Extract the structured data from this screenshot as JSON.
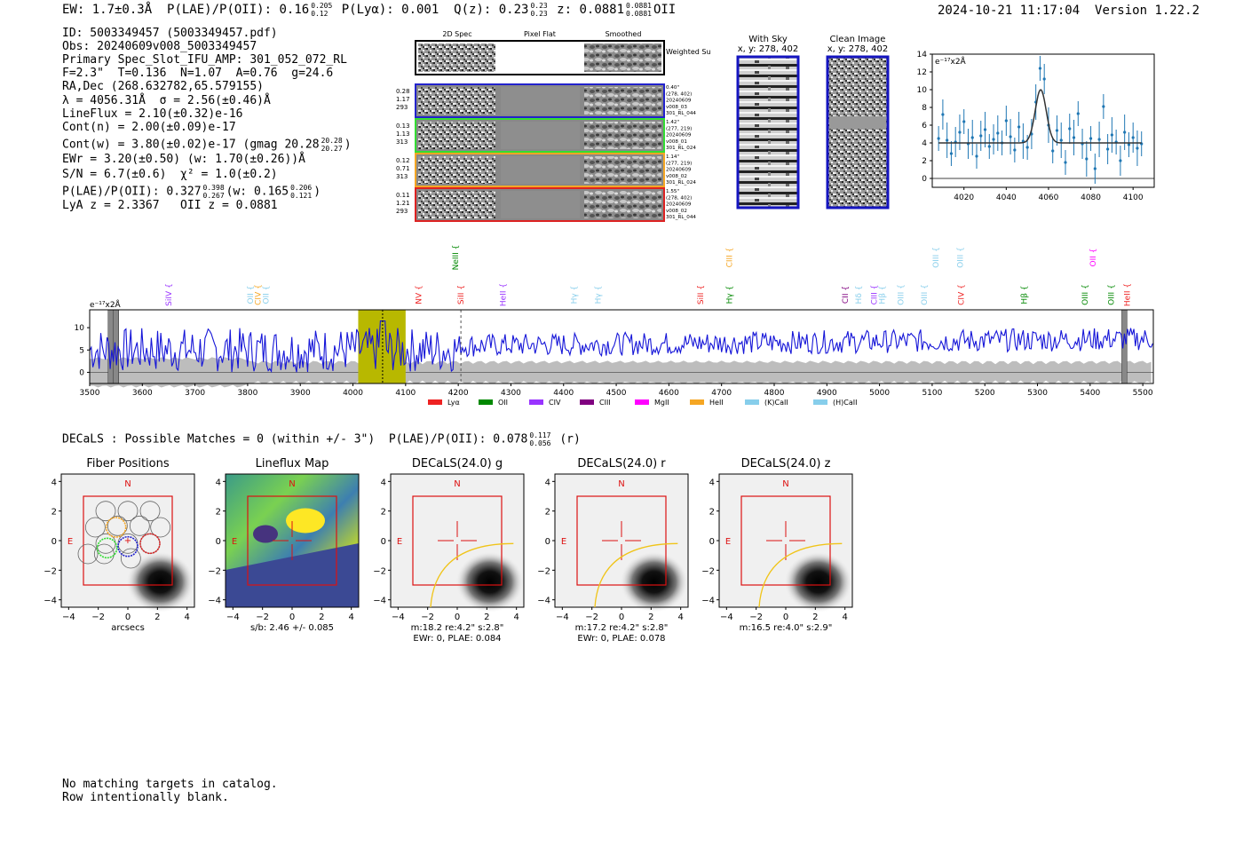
{
  "header": {
    "ew": "EW: 1.7±0.3Å",
    "plae_label": "P(LAE)/P(OII):",
    "plae_value": "0.16",
    "plae_hi": "0.205",
    "plae_lo": "0.12",
    "plya": "P(Lyα): 0.001",
    "qz_label": "Q(z):",
    "qz_value": "0.23",
    "qz_hi": "0.23",
    "qz_lo": "0.23",
    "z_label": "z:",
    "z_value": "0.0881",
    "z_hi": "0.0881",
    "z_lo": "0.0881",
    "z_line": "OII",
    "timestamp": "2024-10-21 11:17:04",
    "version": "Version 1.22.2"
  },
  "info": {
    "id": "ID: 5003349457 (5003349457.pdf)",
    "obs": "Obs: 20240609v008_5003349457",
    "primary": "Primary Spec_Slot_IFU_AMP: 301_052_072_RL",
    "params": "F=2.3\"  T=0.136  N=1.07  A=0.76  g=24.6",
    "radec": "RA,Dec (268.632782,65.579155)",
    "lambda": "λ = 4056.31Å  σ = 2.56(±0.46)Å",
    "lineflux": "LineFlux = 2.10(±0.32)e-16",
    "contn": "Cont(n) = 2.00(±0.09)e-17",
    "contw": "Cont(w) = 3.80(±0.02)e-17 (gmag 20.28",
    "contw_hi": "20.28",
    "contw_lo": "20.27",
    "ewr": "EWr = 3.20(±0.50) (w: 1.70(±0.26))Å",
    "sn": "S/N = 6.7(±0.6)  χ² = 1.0(±0.2)",
    "plae": "P(LAE)/P(OII): 0.327",
    "plae_hi": "0.398",
    "plae_lo": "0.267",
    "plae_w": "(w: 0.165",
    "plae_w_hi": "0.206",
    "plae_w_lo": "0.121",
    "lya_z": "LyA z = 2.3367   OII z = 0.0881"
  },
  "cutouts": {
    "col_2d": "2D Spec",
    "col_flat": "Pixel Flat",
    "col_smooth": "Smoothed",
    "weighted": "Weighted Sum",
    "rows": [
      {
        "color": "#2222cc",
        "left": [
          "0.28",
          "1.17",
          "293"
        ],
        "right": [
          "0.40\"",
          "(278, 402)",
          "20240609",
          "v008_03",
          "301_RL_044"
        ]
      },
      {
        "color": "#33dd33",
        "left": [
          "0.13",
          "1.13",
          "313"
        ],
        "right": [
          "1.42\"",
          "(277, 219)",
          "20240609",
          "v008_01",
          "301_RL_024"
        ]
      },
      {
        "color": "#f5a623",
        "left": [
          "0.12",
          "0.71",
          "313"
        ],
        "right": [
          "1.14\"",
          "(277, 219)",
          "20240609",
          "v008_02",
          "301_RL_024"
        ]
      },
      {
        "color": "#dd2222",
        "left": [
          "0.11",
          "1.21",
          "293"
        ],
        "right": [
          "1.55\"",
          "(278, 402)",
          "20240609",
          "v008_02",
          "301_RL_044"
        ]
      }
    ]
  },
  "sky": {
    "with_sky": "With Sky",
    "clean": "Clean Image",
    "coords": "x, y: 278, 402"
  },
  "zoom_chart": {
    "type": "line",
    "ylabel": "e⁻¹⁷x2Å",
    "xlim": [
      4005,
      4110
    ],
    "ylim": [
      -1,
      14
    ],
    "xticks": [
      4020,
      4040,
      4060,
      4080,
      4100
    ],
    "yticks": [
      0,
      2,
      4,
      6,
      8,
      10,
      12,
      14
    ],
    "continuum": 4.0,
    "peak_center": 4056.3,
    "peak_amp": 6.0,
    "peak_sigma": 2.6,
    "x": [
      4008,
      4010,
      4012,
      4014,
      4016,
      4018,
      4020,
      4022,
      4024,
      4026,
      4028,
      4030,
      4032,
      4034,
      4036,
      4038,
      4040,
      4042,
      4044,
      4046,
      4048,
      4050,
      4052,
      4054,
      4056,
      4058,
      4060,
      4062,
      4064,
      4066,
      4068,
      4070,
      4072,
      4074,
      4076,
      4078,
      4080,
      4082,
      4084,
      4086,
      4088,
      4090,
      4092,
      4094,
      4096,
      4098,
      4100,
      4102,
      4104
    ],
    "y": [
      4.5,
      7.2,
      4.3,
      2.8,
      4.1,
      5.2,
      6.4,
      3.9,
      4.6,
      2.5,
      4.8,
      5.5,
      3.6,
      4.4,
      5.1,
      4.0,
      6.5,
      4.7,
      3.2,
      5.8,
      4.2,
      3.5,
      5.0,
      8.6,
      12.4,
      11.2,
      6.0,
      3.1,
      5.4,
      4.3,
      1.8,
      5.6,
      4.6,
      7.3,
      3.9,
      2.2,
      4.5,
      1.1,
      4.4,
      8.1,
      3.3,
      4.9,
      4.1,
      2.0,
      5.2,
      3.8,
      4.6,
      3.4,
      3.9
    ]
  },
  "spectrum": {
    "type": "line",
    "ylabel": "e⁻¹⁷x2Å",
    "xlim": [
      3500,
      5520
    ],
    "ylim": [
      -2.5,
      14
    ],
    "xticks": [
      3500,
      3600,
      3700,
      3800,
      3900,
      4000,
      4100,
      4200,
      4300,
      4400,
      4500,
      4600,
      4700,
      4800,
      4900,
      5000,
      5100,
      5200,
      5300,
      5400,
      5500
    ],
    "yticks": [
      0,
      5,
      10
    ],
    "highlight": [
      4010,
      4100
    ],
    "line_marker": 4056.3,
    "dashed_marker": 4205,
    "bad_regions": [
      [
        3535,
        3555
      ],
      [
        3545,
        3555
      ],
      [
        5460,
        5470
      ]
    ],
    "lines": [
      {
        "label": "SiIV",
        "x": 3655,
        "color": "#9933ff",
        "level": 1
      },
      {
        "label": "OII",
        "x": 3810,
        "color": "#87ceeb",
        "level": 1
      },
      {
        "label": "CIV",
        "x": 3825,
        "color": "#f5a623",
        "level": 1
      },
      {
        "label": "OII",
        "x": 3840,
        "color": "#87ceeb",
        "level": 1
      },
      {
        "label": "NV",
        "x": 4130,
        "color": "#ee2222",
        "level": 1
      },
      {
        "label": "NeIII",
        "x": 4200,
        "color": "#008800",
        "level": 2
      },
      {
        "label": "SiII",
        "x": 4210,
        "color": "#ee2222",
        "level": 1
      },
      {
        "label": "HeII",
        "x": 4290,
        "color": "#9933ff",
        "level": 1
      },
      {
        "label": "Hγ",
        "x": 4425,
        "color": "#87ceeb",
        "level": 1
      },
      {
        "label": "Hγ",
        "x": 4470,
        "color": "#87ceeb",
        "level": 1
      },
      {
        "label": "SiII",
        "x": 4665,
        "color": "#ee2222",
        "level": 1
      },
      {
        "label": "CIII",
        "x": 4720,
        "color": "#f5a623",
        "level": 2
      },
      {
        "label": "Hγ",
        "x": 4720,
        "color": "#008800",
        "level": 1
      },
      {
        "label": "CII",
        "x": 4940,
        "color": "#800080",
        "level": 1
      },
      {
        "label": "Hδ",
        "x": 4965,
        "color": "#87ceeb",
        "level": 1
      },
      {
        "label": "CIII",
        "x": 4995,
        "color": "#9933ff",
        "level": 1
      },
      {
        "label": "Hβ",
        "x": 5010,
        "color": "#87ceeb",
        "level": 1
      },
      {
        "label": "OIII",
        "x": 5045,
        "color": "#87ceeb",
        "level": 1
      },
      {
        "label": "OIII",
        "x": 5090,
        "color": "#87ceeb",
        "level": 1
      },
      {
        "label": "OIII",
        "x": 5112,
        "color": "#87ceeb",
        "level": 2
      },
      {
        "label": "OIII",
        "x": 5158,
        "color": "#87ceeb",
        "level": 2
      },
      {
        "label": "CIV",
        "x": 5160,
        "color": "#ee2222",
        "level": 1
      },
      {
        "label": "Hβ",
        "x": 5280,
        "color": "#008800",
        "level": 1
      },
      {
        "label": "OIII",
        "x": 5395,
        "color": "#008800",
        "level": 1
      },
      {
        "label": "OII",
        "x": 5410,
        "color": "#ff00ff",
        "level": 2
      },
      {
        "label": "OIII",
        "x": 5445,
        "color": "#008800",
        "level": 1
      },
      {
        "label": "HeII",
        "x": 5475,
        "color": "#ee2222",
        "level": 1
      }
    ],
    "legend": [
      {
        "label": "Lyα",
        "color": "#ee2222"
      },
      {
        "label": "OII",
        "color": "#008800"
      },
      {
        "label": "CIV",
        "color": "#9933ff"
      },
      {
        "label": "CIII",
        "color": "#800080"
      },
      {
        "label": "MgII",
        "color": "#ff00ff"
      },
      {
        "label": "HeII",
        "color": "#f5a623"
      },
      {
        "label": "(K)CaII",
        "color": "#87ceeb"
      },
      {
        "label": "(H)CaII",
        "color": "#87ceeb"
      }
    ]
  },
  "decals": {
    "line": "DECaLS : Possible Matches = 0 (within +/- 3\")  P(LAE)/P(OII): 0.078",
    "hi": "0.117",
    "lo": "0.056",
    "band": "(r)",
    "panels": [
      {
        "title": "Fiber Positions",
        "xlabel": "arcsecs",
        "caption": []
      },
      {
        "title": "Lineflux Map",
        "xlabel": "",
        "caption": [
          "s/b: 2.46 +/- 0.085"
        ]
      },
      {
        "title": "DECaLS(24.0) g",
        "xlabel": "",
        "caption": [
          "m:18.2  re:4.2\"  s:2.8\"",
          "EWr: 0, PLAE: 0.084"
        ]
      },
      {
        "title": "DECaLS(24.0) r",
        "xlabel": "",
        "caption": [
          "m:17.2  re:4.2\"  s:2.8\"",
          "EWr: 0, PLAE: 0.078"
        ]
      },
      {
        "title": "DECaLS(24.0) z",
        "xlabel": "",
        "caption": [
          "m:16.5  re:4.0\"  s:2.9\""
        ]
      }
    ],
    "ticks": [
      "−4",
      "−2",
      "0",
      "2",
      "4"
    ],
    "north": "N",
    "east": "E"
  },
  "footer": {
    "line1": "No matching targets in catalog.",
    "line2": "Row intentionally blank."
  }
}
